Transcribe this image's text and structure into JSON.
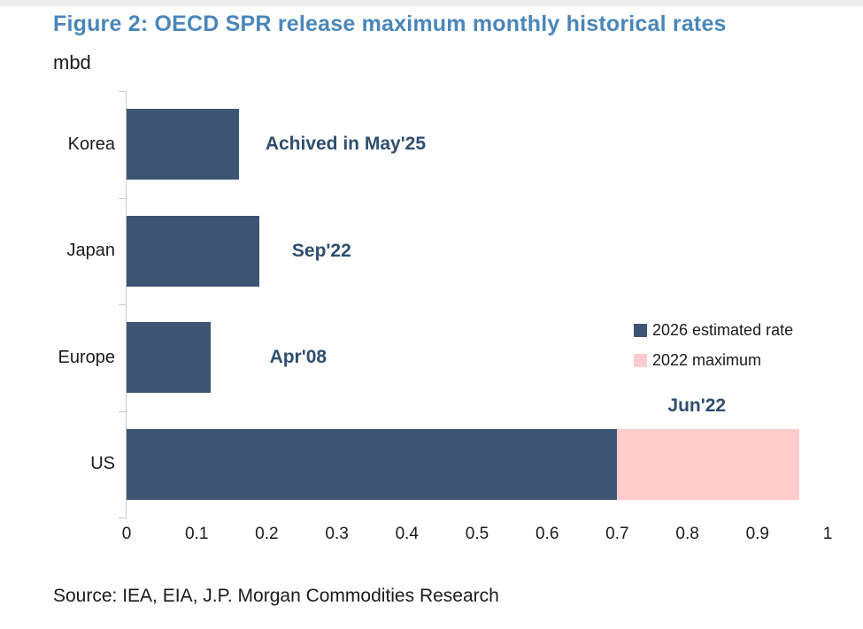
{
  "figure": {
    "title": "Figure 2: OECD SPR release maximum monthly historical rates",
    "unit_label": "mbd",
    "source": "Source: IEA, EIA, J.P. Morgan Commodities Research"
  },
  "colors": {
    "title_blue": "#4a86ba",
    "bar_navy": "#3d5572",
    "bar_pink": "#ffcccc",
    "annotation_navy": "#2f4d6e",
    "axis_gray": "#c9c9c9",
    "text_black": "#1a1a1a"
  },
  "legend": {
    "items": [
      {
        "label": "2026 estimated rate",
        "color": "#3d5572"
      },
      {
        "label": "2022 maximum",
        "color": "#ffcccc"
      }
    ]
  },
  "chart_data": {
    "type": "bar",
    "orientation": "horizontal",
    "title": "Figure 2: OECD SPR release maximum monthly historical rates",
    "unit": "mbd",
    "categories": [
      "Korea",
      "Japan",
      "Europe",
      "US"
    ],
    "series": [
      {
        "name": "2026 estimated rate",
        "color": "#3d5572",
        "values": [
          0.16,
          0.19,
          0.12,
          0.7
        ]
      },
      {
        "name": "2022 maximum",
        "color": "#ffcccc",
        "values": [
          0,
          0,
          0,
          0.26
        ]
      }
    ],
    "annotations": [
      {
        "text": "Achived in May'25",
        "row": 0,
        "x": 0.198,
        "placement": "middle"
      },
      {
        "text": "Sep'22",
        "row": 1,
        "x": 0.236,
        "placement": "middle"
      },
      {
        "text": "Apr'08",
        "row": 2,
        "x": 0.204,
        "placement": "middle"
      },
      {
        "text": "Jun'22",
        "row": 3,
        "x": 0.772,
        "placement": "above"
      }
    ],
    "xlim": [
      0,
      1
    ],
    "xticks": [
      0,
      0.1,
      0.2,
      0.3,
      0.4,
      0.5,
      0.6,
      0.7,
      0.8,
      0.9,
      1
    ],
    "xtick_labels": [
      "0",
      "0.1",
      "0.2",
      "0.3",
      "0.4",
      "0.5",
      "0.6",
      "0.7",
      "0.8",
      "0.9",
      "1"
    ],
    "grid": false,
    "legend_position": "right-middle"
  }
}
